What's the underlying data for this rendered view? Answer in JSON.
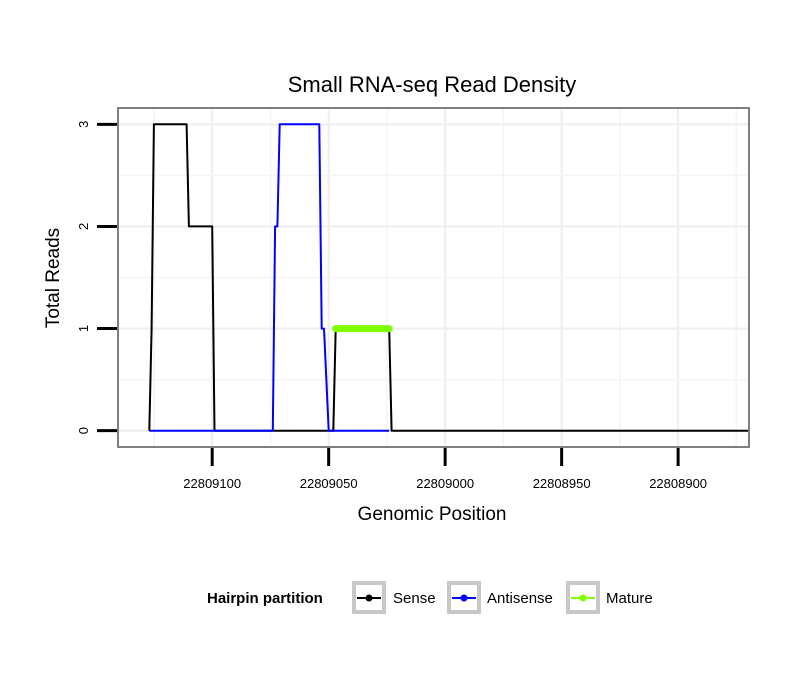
{
  "chart_data": {
    "type": "line",
    "title": "Small RNA-seq Read Density",
    "xlabel": "Genomic Position",
    "ylabel": "Total Reads",
    "x_reversed": true,
    "xlim": [
      22809140,
      22808870
    ],
    "ylim": [
      -0.15,
      3.15
    ],
    "x_ticks": [
      22809100,
      22809050,
      22809000,
      22808950,
      22808900
    ],
    "x_tick_labels": [
      "22809100",
      "22809050",
      "22809000",
      "22808950",
      "22808900"
    ],
    "y_ticks": [
      0,
      1,
      2,
      3
    ],
    "y_tick_labels": [
      "0",
      "1",
      "2",
      "3"
    ],
    "grid": true,
    "legend": {
      "title": "Hairpin partition",
      "position": "bottom",
      "entries": [
        {
          "name": "Sense",
          "color": "#000000"
        },
        {
          "name": "Antisense",
          "color": "#0000ff"
        },
        {
          "name": "Mature",
          "color": "#7fff00"
        }
      ]
    },
    "series": [
      {
        "name": "Sense",
        "color": "#000000",
        "x": [
          22809127,
          22809126,
          22809125,
          22809111,
          22809110,
          22809100,
          22809099,
          22809048,
          22809047,
          22809024,
          22809023,
          22808870
        ],
        "y": [
          0,
          1,
          3,
          3,
          2,
          2,
          0,
          0,
          1,
          1,
          0,
          0
        ]
      },
      {
        "name": "Antisense",
        "color": "#0000ff",
        "x": [
          22809127,
          22809074,
          22809073,
          22809072,
          22809071,
          22809054,
          22809053,
          22809052,
          22809050,
          22809024
        ],
        "y": [
          0,
          0,
          2,
          2,
          3,
          3,
          1,
          1,
          0,
          0
        ]
      },
      {
        "name": "Mature",
        "color": "#7fff00",
        "x": [
          22809047,
          22809024
        ],
        "y": [
          1,
          1
        ]
      }
    ]
  }
}
